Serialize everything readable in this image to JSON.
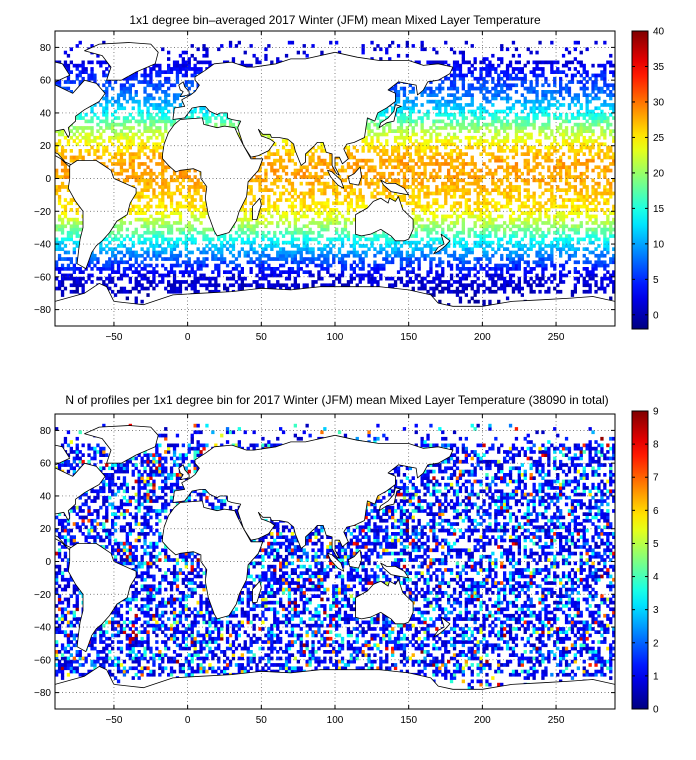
{
  "chart_data": [
    {
      "type": "heatmap",
      "title": "1x1 degree bin–averaged 2017 Winter (JFM) mean Mixed Layer Temperature",
      "xlabel": "",
      "ylabel": "",
      "xlim": [
        -90,
        290
      ],
      "ylim": [
        -90,
        90
      ],
      "xticks": [
        -50,
        0,
        50,
        100,
        150,
        200,
        250
      ],
      "yticks": [
        -80,
        -60,
        -40,
        -20,
        0,
        20,
        40,
        60,
        80
      ],
      "colorbar_range": [
        -2,
        40
      ],
      "colorbar_ticks": [
        0,
        5,
        10,
        15,
        20,
        25,
        30,
        35,
        40
      ],
      "grid": true,
      "colormap": "jet",
      "value_profile_by_latitude": [
        {
          "lat": -75,
          "value": 0
        },
        {
          "lat": -60,
          "value": 2
        },
        {
          "lat": -50,
          "value": 7
        },
        {
          "lat": -40,
          "value": 13
        },
        {
          "lat": -30,
          "value": 20
        },
        {
          "lat": -20,
          "value": 25
        },
        {
          "lat": 0,
          "value": 28
        },
        {
          "lat": 10,
          "value": 28
        },
        {
          "lat": 20,
          "value": 25
        },
        {
          "lat": 30,
          "value": 20
        },
        {
          "lat": 40,
          "value": 13
        },
        {
          "lat": 50,
          "value": 8
        },
        {
          "lat": 60,
          "value": 5
        },
        {
          "lat": 70,
          "value": 2
        }
      ]
    },
    {
      "type": "heatmap",
      "title": "N of profiles per 1x1 degree bin for 2017 Winter (JFM) mean Mixed Layer Temperature  (38090 in total)",
      "xlabel": "",
      "ylabel": "",
      "xlim": [
        -90,
        290
      ],
      "ylim": [
        -90,
        90
      ],
      "xticks": [
        -50,
        0,
        50,
        100,
        150,
        200,
        250
      ],
      "yticks": [
        -80,
        -60,
        -40,
        -20,
        0,
        20,
        40,
        60,
        80
      ],
      "colorbar_range": [
        0,
        9
      ],
      "colorbar_ticks": [
        0,
        1,
        2,
        3,
        4,
        5,
        6,
        7,
        8,
        9
      ],
      "grid": true,
      "colormap": "jet",
      "total_profiles": 38090,
      "typical_value": 1,
      "hotspot_value": 9
    }
  ],
  "colors": {
    "frame": "#000000",
    "background": "#ffffff",
    "land": "#ffffff"
  }
}
